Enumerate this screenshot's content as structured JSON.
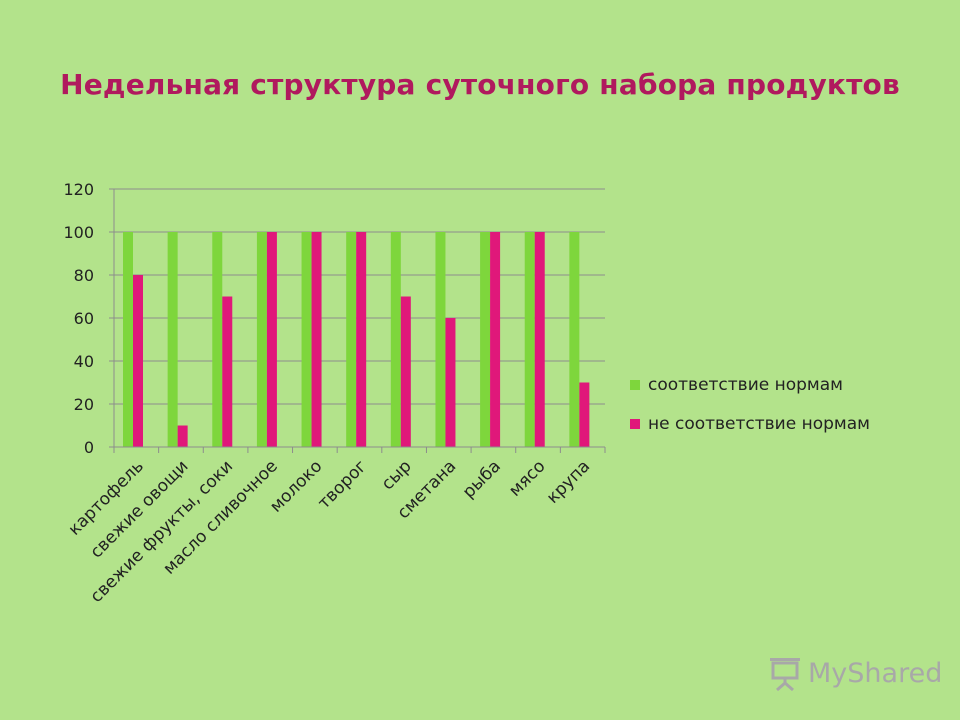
{
  "chart_data": {
    "type": "bar",
    "title": "Недельная структура суточного набора продуктов",
    "categories": [
      "картофель",
      "свежие овощи",
      "свежие фрукты, соки",
      "масло сливочное",
      "молоко",
      "творог",
      "сыр",
      "сметана",
      "рыба",
      "мясо",
      "крупа"
    ],
    "series": [
      {
        "name": "соответствие нормам",
        "color": "#7ed63c",
        "values": [
          100,
          100,
          100,
          100,
          100,
          100,
          100,
          100,
          100,
          100,
          100
        ]
      },
      {
        "name": "не соответствие нормам",
        "color": "#e0187a",
        "values": [
          80,
          10,
          70,
          100,
          100,
          100,
          70,
          60,
          100,
          100,
          30
        ]
      }
    ],
    "ylim": [
      0,
      120
    ],
    "yticks": [
      0,
      20,
      40,
      60,
      80,
      100,
      120
    ],
    "grid": true,
    "legend": "right"
  },
  "watermark": {
    "text": "MyShared",
    "icon": "projector-screen-icon"
  },
  "colors": {
    "background": "#b3e38b",
    "title": "#b0195e"
  }
}
